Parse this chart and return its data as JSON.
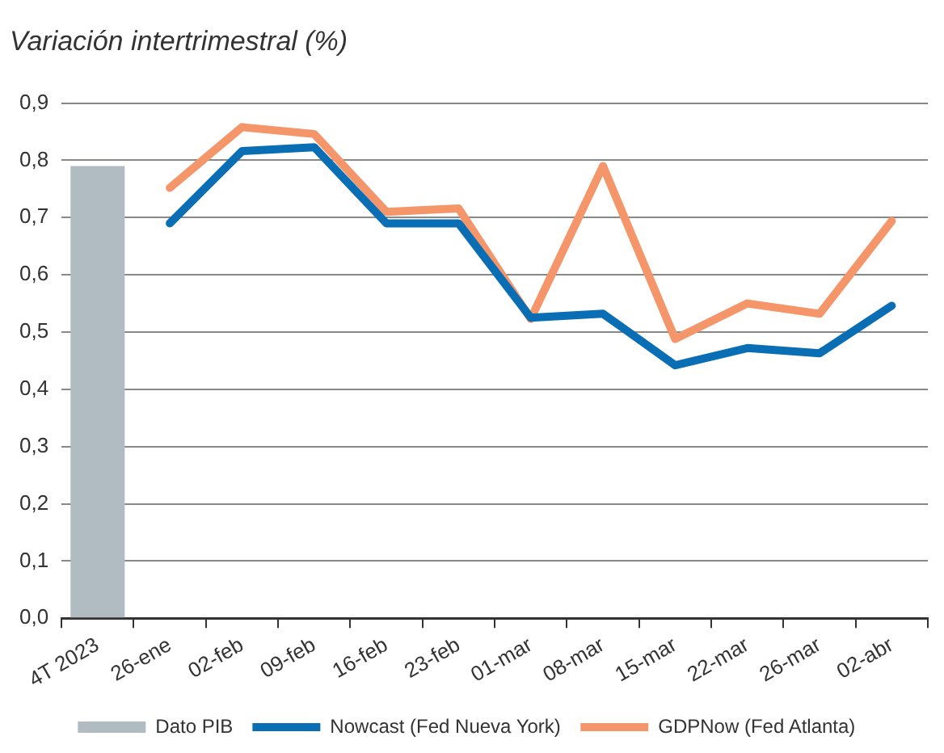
{
  "chart_data": {
    "type": "line",
    "subtitle": "Variación intertrimestral (%)",
    "categories": [
      "4T 2023",
      "26-ene",
      "02-feb",
      "09-feb",
      "16-feb",
      "23-feb",
      "01-mar",
      "08-mar",
      "15-mar",
      "22-mar",
      "26-mar",
      "02-abr"
    ],
    "series": [
      {
        "name": "Dato PIB",
        "type": "bar",
        "color": "#b0bcc2",
        "values": [
          0.79,
          null,
          null,
          null,
          null,
          null,
          null,
          null,
          null,
          null,
          null,
          null
        ]
      },
      {
        "name": "Nowcast (Fed Nueva York)",
        "color": "#0a6eb4",
        "values": [
          null,
          0.69,
          0.816,
          0.823,
          0.69,
          0.69,
          0.525,
          0.532,
          0.442,
          0.472,
          0.463,
          0.546
        ]
      },
      {
        "name": "GDPNow (Fed Atlanta)",
        "color": "#f4956a",
        "values": [
          null,
          0.752,
          0.858,
          0.846,
          0.71,
          0.716,
          0.523,
          0.79,
          0.488,
          0.55,
          0.532,
          0.694
        ]
      }
    ],
    "ylim": [
      0,
      0.9
    ],
    "yticks": [
      {
        "value": 0,
        "label": "0,0"
      },
      {
        "value": 0.1,
        "label": "0,1"
      },
      {
        "value": 0.2,
        "label": "0,2"
      },
      {
        "value": 0.3,
        "label": "0,3"
      },
      {
        "value": 0.4,
        "label": "0,4"
      },
      {
        "value": 0.5,
        "label": "0,5"
      },
      {
        "value": 0.6,
        "label": "0,6"
      },
      {
        "value": 0.7,
        "label": "0,7"
      },
      {
        "value": 0.8,
        "label": "0,8"
      },
      {
        "value": 0.9,
        "label": "0,9"
      }
    ],
    "grid": "y",
    "legend": "bottom",
    "marker": "none",
    "line_style": "solid"
  }
}
